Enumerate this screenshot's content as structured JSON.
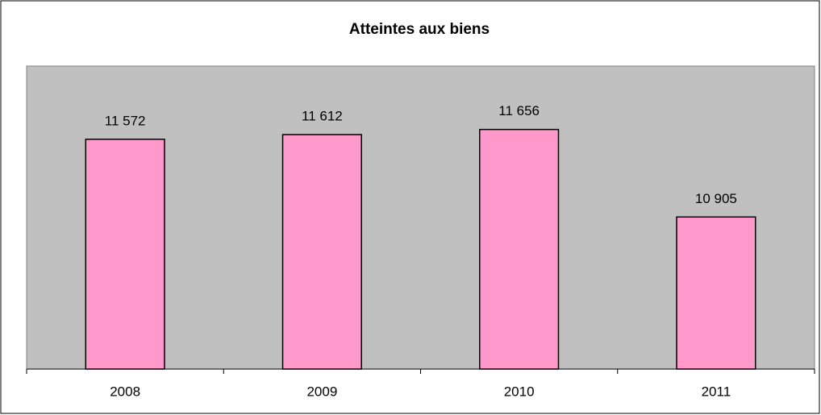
{
  "chart_data": {
    "type": "bar",
    "title": "Atteintes aux biens",
    "categories": [
      "2008",
      "2009",
      "2010",
      "2011"
    ],
    "values": [
      11572,
      11612,
      11656,
      10905
    ],
    "value_labels": [
      "11 572",
      "11 612",
      "11 656",
      "10 905"
    ],
    "color": "#ff99cc",
    "ylim": [
      9600,
      12200
    ]
  }
}
